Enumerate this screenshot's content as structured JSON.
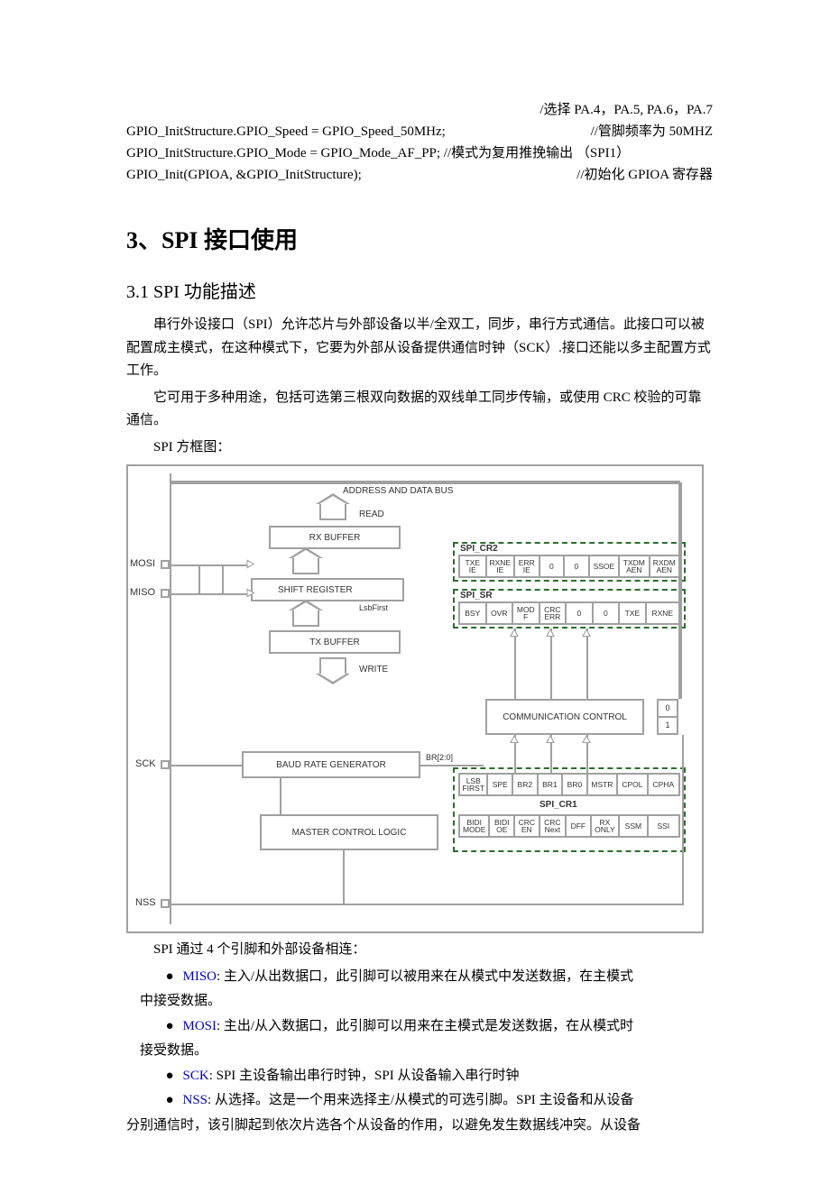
{
  "code": {
    "l0_right": "/选择 PA.4，PA.5, PA.6，PA.7",
    "l1_left": "GPIO_InitStructure.GPIO_Speed = GPIO_Speed_50MHz;",
    "l1_right": "//管脚频率为 50MHZ",
    "l2_left": "GPIO_InitStructure.GPIO_Mode = GPIO_Mode_AF_PP; //模式为复用推挽输出 （SPI1）",
    "l3_left": "GPIO_Init(GPIOA, &GPIO_InitStructure);",
    "l3_right": "//初始化 GPIOA 寄存器"
  },
  "h2": "3、SPI 接口使用",
  "h3": "3.1 SPI 功能描述",
  "para1": "串行外设接口（SPI）允许芯片与外部设备以半/全双工，同步，串行方式通信。此接口可以被配置成主模式，在这种模式下，它要为外部从设备提供通信时钟（SCK）.接口还能以多主配置方式工作。",
  "para2": "它可用于多种用途，包括可选第三根双向数据的双线单工同步传输，或使用 CRC 校验的可靠通信。",
  "caption": "SPI 方框图：",
  "diagram": {
    "bus_label": "ADDRESS AND DATA BUS",
    "read": "READ",
    "rx": "RX BUFFER",
    "shift": "SHIFT REGISTER",
    "lsb": "LsbFirst",
    "tx": "TX BUFFER",
    "write": "WRITE",
    "comm": "COMMUNICATION CONTROL",
    "baud": "BAUD RATE GENERATOR",
    "br20": "BR[2:0]",
    "master": "MASTER CONTROL LOGIC",
    "pins": {
      "mosi": "MOSI",
      "miso": "MISO",
      "sck": "SCK",
      "nss": "NSS"
    },
    "cr2": {
      "title": "SPI_CR2",
      "cells": [
        "TXE\nIE",
        "RXNE\nIE",
        "ERR\nIE",
        "0",
        "0",
        "SSOE",
        "TXDM\nAEN",
        "RXDM\nAEN"
      ]
    },
    "sr": {
      "title": "SPI_SR",
      "cells": [
        "BSY",
        "OVR",
        "MOD\nF",
        "CRC\nERR",
        "0",
        "0",
        "TXE",
        "RXNE"
      ]
    },
    "cr1a": {
      "cells": [
        "LSB\nFIRST",
        "SPE",
        "BR2",
        "BR1",
        "BR0",
        "MSTR",
        "CPOL",
        "CPHA"
      ]
    },
    "cr1_title": "SPI_CR1",
    "cr1b": {
      "cells": [
        "BIDI\nMODE",
        "BIDI\nOE",
        "CRC\nEN",
        "CRC\nNext",
        "DFF",
        "RX\nONLY",
        "SSM",
        "SSI"
      ]
    }
  },
  "after_diagram": "SPI 通过 4 个引脚和外部设备相连：",
  "bullets": [
    {
      "tag": "MISO",
      "text": ": 主入/从出数据口，此引脚可以被用来在从模式中发送数据，在主模式",
      "cont": "中接受数据。"
    },
    {
      "tag": "MOSI",
      "text": ": 主出/从入数据口，此引脚可以用来在主模式是发送数据，在从模式时",
      "cont": "接受数据。"
    },
    {
      "tag": "SCK",
      "text": ": SPI 主设备输出串行时钟，SPI 从设备输入串行时钟"
    },
    {
      "tag": "NSS",
      "text": ": 从选择。这是一个用来选择主/从模式的可选引脚。SPI 主设备和从设备",
      "cont": "分别通信时，该引脚起到依次片选各个从设备的作用，以避免发生数据线冲突。从设备"
    }
  ]
}
